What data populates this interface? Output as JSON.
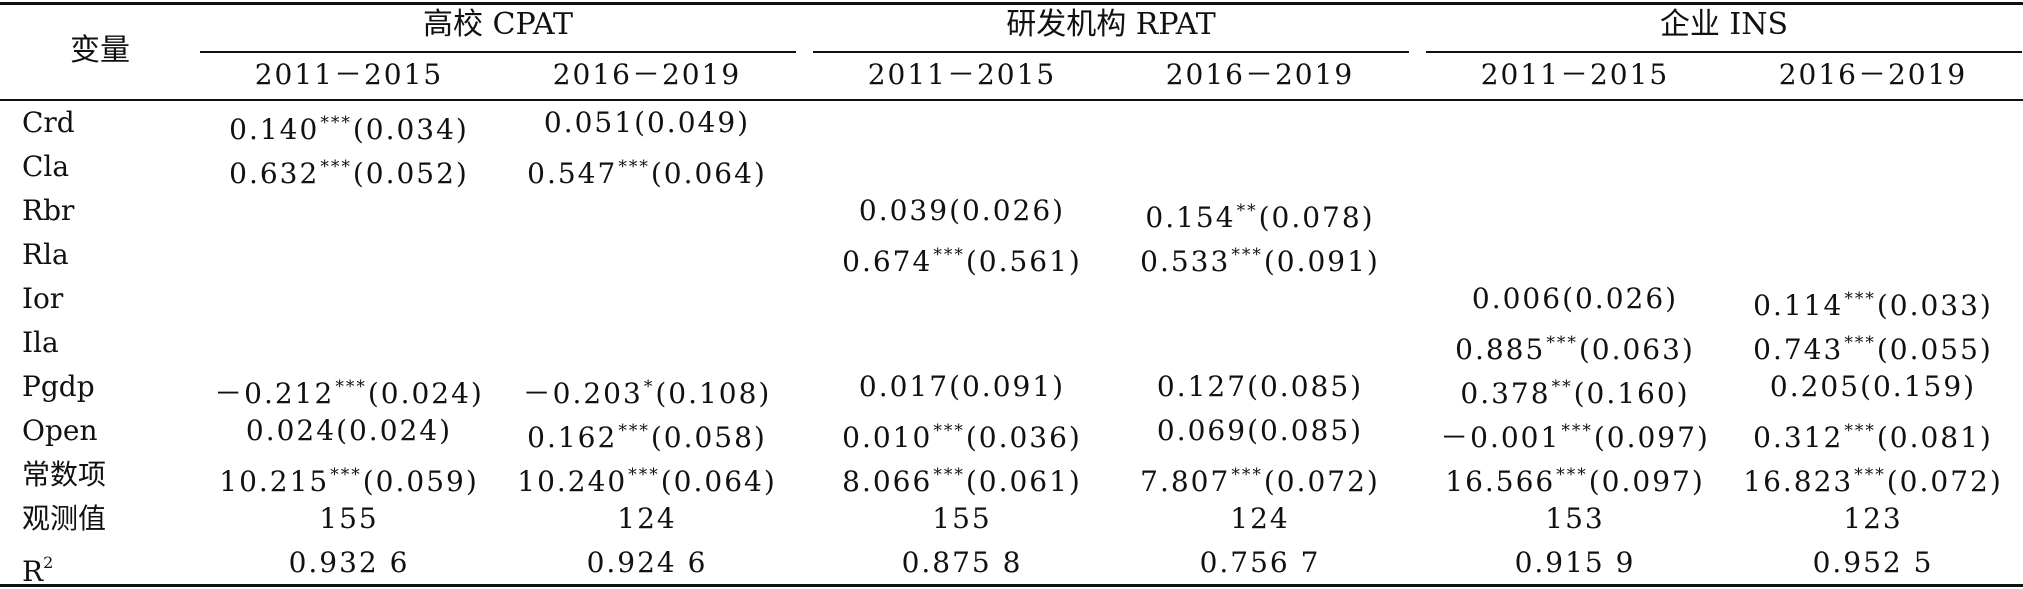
{
  "table": {
    "corner_label": "变量",
    "groups": [
      {
        "label": "高校 CPAT"
      },
      {
        "label": "研发机构 RPAT"
      },
      {
        "label": "企业 INS"
      }
    ],
    "periods": [
      "2011－2015",
      "2016－2019",
      "2011－2015",
      "2016－2019",
      "2011－2015",
      "2016－2019"
    ],
    "rows": [
      {
        "var": "Crd",
        "cells": [
          {
            "v": "0.140",
            "s": "***",
            "se": "(0.034)"
          },
          {
            "v": "0.051(0.049)",
            "s": "",
            "se": ""
          },
          null,
          null,
          null,
          null
        ]
      },
      {
        "var": "Cla",
        "cells": [
          {
            "v": "0.632",
            "s": "***",
            "se": "(0.052)"
          },
          {
            "v": "0.547",
            "s": "***",
            "se": "(0.064)"
          },
          null,
          null,
          null,
          null
        ]
      },
      {
        "var": "Rbr",
        "cells": [
          null,
          null,
          {
            "v": "0.039(0.026)",
            "s": "",
            "se": ""
          },
          {
            "v": "0.154",
            "s": "**",
            "se": "(0.078)"
          },
          null,
          null
        ]
      },
      {
        "var": "Rla",
        "cells": [
          null,
          null,
          {
            "v": "0.674",
            "s": "***",
            "se": "(0.561)"
          },
          {
            "v": "0.533",
            "s": "***",
            "se": "(0.091)"
          },
          null,
          null
        ]
      },
      {
        "var": "Ior",
        "cells": [
          null,
          null,
          null,
          null,
          {
            "v": "0.006(0.026)",
            "s": "",
            "se": ""
          },
          {
            "v": "0.114",
            "s": "***",
            "se": "(0.033)"
          }
        ]
      },
      {
        "var": "Ila",
        "cells": [
          null,
          null,
          null,
          null,
          {
            "v": "0.885",
            "s": "***",
            "se": "(0.063)"
          },
          {
            "v": "0.743",
            "s": "***",
            "se": "(0.055)"
          }
        ]
      },
      {
        "var": "Pgdp",
        "cells": [
          {
            "v": "－0.212",
            "s": "***",
            "se": "(0.024)"
          },
          {
            "v": "－0.203",
            "s": "*",
            "se": "(0.108)"
          },
          {
            "v": "0.017(0.091)",
            "s": "",
            "se": ""
          },
          {
            "v": "0.127(0.085)",
            "s": "",
            "se": ""
          },
          {
            "v": "0.378",
            "s": "**",
            "se": "(0.160)"
          },
          {
            "v": "0.205(0.159)",
            "s": "",
            "se": ""
          }
        ]
      },
      {
        "var": "Open",
        "cells": [
          {
            "v": "0.024(0.024)",
            "s": "",
            "se": ""
          },
          {
            "v": "0.162",
            "s": "***",
            "se": "(0.058)"
          },
          {
            "v": "0.010",
            "s": "***",
            "se": "(0.036)"
          },
          {
            "v": "0.069(0.085)",
            "s": "",
            "se": ""
          },
          {
            "v": "－0.001",
            "s": "***",
            "se": "(0.097)"
          },
          {
            "v": "0.312",
            "s": "***",
            "se": "(0.081)"
          }
        ]
      },
      {
        "var": "常数项",
        "cells": [
          {
            "v": "10.215",
            "s": "***",
            "se": "(0.059)"
          },
          {
            "v": "10.240",
            "s": "***",
            "se": "(0.064)"
          },
          {
            "v": "8.066",
            "s": "***",
            "se": "(0.061)"
          },
          {
            "v": "7.807",
            "s": "***",
            "se": "(0.072)"
          },
          {
            "v": "16.566",
            "s": "***",
            "se": "(0.097)"
          },
          {
            "v": "16.823",
            "s": "***",
            "se": "(0.072)"
          }
        ]
      },
      {
        "var": "观测值",
        "cells": [
          {
            "v": "155",
            "s": "",
            "se": ""
          },
          {
            "v": "124",
            "s": "",
            "se": ""
          },
          {
            "v": "155",
            "s": "",
            "se": ""
          },
          {
            "v": "124",
            "s": "",
            "se": ""
          },
          {
            "v": "153",
            "s": "",
            "se": ""
          },
          {
            "v": "123",
            "s": "",
            "se": ""
          }
        ]
      },
      {
        "var": "R",
        "var_sup": "2",
        "cells": [
          {
            "v": "0.932 6",
            "s": "",
            "se": ""
          },
          {
            "v": "0.924 6",
            "s": "",
            "se": ""
          },
          {
            "v": "0.875 8",
            "s": "",
            "se": ""
          },
          {
            "v": "0.756 7",
            "s": "",
            "se": ""
          },
          {
            "v": "0.915 9",
            "s": "",
            "se": ""
          },
          {
            "v": "0.952 5",
            "s": "",
            "se": ""
          }
        ]
      }
    ]
  }
}
